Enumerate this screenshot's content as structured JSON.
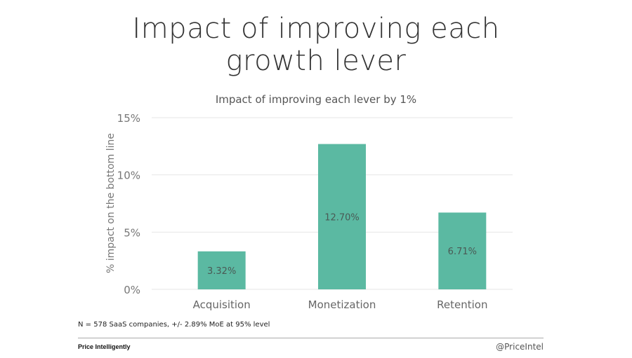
{
  "slide": {
    "title_line1": "Impact of improving each",
    "title_line2": "growth lever",
    "footnote": "N = 578 SaaS companies, +/- 2.89% MoE at 95% level",
    "brand": "Price Intelligently",
    "handle": "@PriceIntel"
  },
  "chart_data": {
    "type": "bar",
    "title": "Impact of improving each lever by 1%",
    "xlabel": "",
    "ylabel": "% impact on the bottom line",
    "categories": [
      "Acquisition",
      "Monetization",
      "Retention"
    ],
    "values": [
      3.32,
      12.7,
      6.71
    ],
    "data_labels": [
      "3.32%",
      "12.70%",
      "6.71%"
    ],
    "ylim": [
      0,
      15
    ],
    "yticks": [
      0,
      5,
      10,
      15
    ],
    "ytick_labels": [
      "0%",
      "5%",
      "10%",
      "15%"
    ],
    "grid": true,
    "bar_color": "#5bb9a2"
  }
}
